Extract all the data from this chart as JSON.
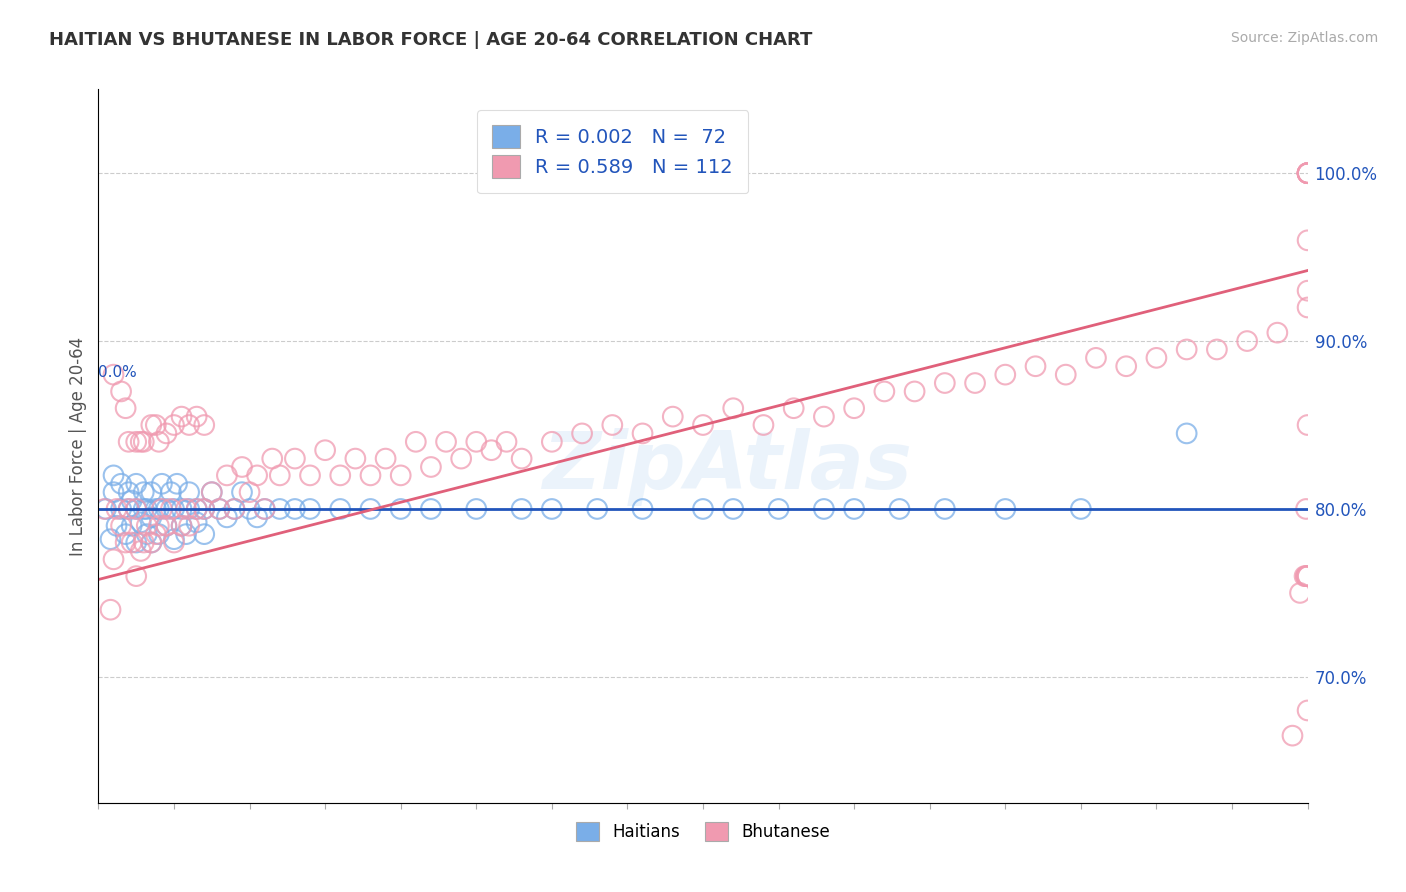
{
  "title": "HAITIAN VS BHUTANESE IN LABOR FORCE | AGE 20-64 CORRELATION CHART",
  "source": "Source: ZipAtlas.com",
  "ylabel": "In Labor Force | Age 20-64",
  "right_yticks": [
    0.7,
    0.8,
    0.9,
    1.0
  ],
  "right_ytick_labels": [
    "70.0%",
    "80.0%",
    "90.0%",
    "100.0%"
  ],
  "xmin": 0.0,
  "xmax": 0.8,
  "ymin": 0.625,
  "ymax": 1.05,
  "blue_R": 0.002,
  "blue_N": 72,
  "pink_R": 0.589,
  "pink_N": 112,
  "blue_color": "#7aaee8",
  "pink_color": "#f09ab0",
  "blue_line_color": "#2255bb",
  "pink_line_color": "#e0607a",
  "watermark": "ZipAtlas",
  "blue_trend_y_intercept": 0.8,
  "blue_trend_slope": 0.0,
  "pink_trend_y_intercept": 0.758,
  "pink_trend_slope": 0.23,
  "blue_x": [
    0.005,
    0.008,
    0.01,
    0.01,
    0.012,
    0.015,
    0.015,
    0.018,
    0.02,
    0.02,
    0.022,
    0.022,
    0.025,
    0.025,
    0.025,
    0.028,
    0.03,
    0.03,
    0.032,
    0.032,
    0.035,
    0.035,
    0.035,
    0.038,
    0.04,
    0.04,
    0.042,
    0.045,
    0.045,
    0.048,
    0.05,
    0.05,
    0.052,
    0.055,
    0.055,
    0.058,
    0.06,
    0.06,
    0.065,
    0.065,
    0.07,
    0.07,
    0.075,
    0.08,
    0.085,
    0.09,
    0.095,
    0.1,
    0.105,
    0.11,
    0.12,
    0.13,
    0.14,
    0.16,
    0.18,
    0.2,
    0.22,
    0.25,
    0.28,
    0.3,
    0.33,
    0.36,
    0.4,
    0.42,
    0.45,
    0.48,
    0.5,
    0.53,
    0.56,
    0.6,
    0.65,
    0.72
  ],
  "blue_y": [
    0.8,
    0.782,
    0.81,
    0.82,
    0.79,
    0.8,
    0.815,
    0.785,
    0.8,
    0.81,
    0.79,
    0.805,
    0.78,
    0.8,
    0.815,
    0.792,
    0.8,
    0.81,
    0.785,
    0.8,
    0.78,
    0.795,
    0.81,
    0.8,
    0.785,
    0.8,
    0.815,
    0.79,
    0.8,
    0.81,
    0.782,
    0.8,
    0.815,
    0.79,
    0.8,
    0.785,
    0.8,
    0.81,
    0.792,
    0.8,
    0.785,
    0.8,
    0.81,
    0.8,
    0.795,
    0.8,
    0.81,
    0.8,
    0.795,
    0.8,
    0.8,
    0.8,
    0.8,
    0.8,
    0.8,
    0.8,
    0.8,
    0.8,
    0.8,
    0.8,
    0.8,
    0.8,
    0.8,
    0.8,
    0.8,
    0.8,
    0.8,
    0.8,
    0.8,
    0.8,
    0.8,
    0.845
  ],
  "pink_x": [
    0.004,
    0.008,
    0.01,
    0.01,
    0.012,
    0.015,
    0.015,
    0.018,
    0.018,
    0.02,
    0.02,
    0.022,
    0.025,
    0.025,
    0.025,
    0.028,
    0.028,
    0.03,
    0.03,
    0.032,
    0.035,
    0.035,
    0.038,
    0.038,
    0.04,
    0.04,
    0.042,
    0.045,
    0.045,
    0.048,
    0.05,
    0.05,
    0.055,
    0.055,
    0.058,
    0.06,
    0.06,
    0.065,
    0.065,
    0.07,
    0.07,
    0.075,
    0.08,
    0.085,
    0.09,
    0.095,
    0.1,
    0.105,
    0.11,
    0.115,
    0.12,
    0.13,
    0.14,
    0.15,
    0.16,
    0.17,
    0.18,
    0.19,
    0.2,
    0.21,
    0.22,
    0.23,
    0.24,
    0.25,
    0.26,
    0.27,
    0.28,
    0.3,
    0.32,
    0.34,
    0.36,
    0.38,
    0.4,
    0.42,
    0.44,
    0.46,
    0.48,
    0.5,
    0.52,
    0.54,
    0.56,
    0.58,
    0.6,
    0.62,
    0.64,
    0.66,
    0.68,
    0.7,
    0.72,
    0.74,
    0.76,
    0.78,
    0.79,
    0.795,
    0.798,
    0.799,
    0.799,
    0.799,
    0.8,
    0.8,
    0.8,
    0.8,
    0.8,
    0.8,
    0.8,
    0.8,
    0.8,
    0.8,
    0.8,
    0.8,
    0.8,
    0.8
  ],
  "pink_y": [
    0.8,
    0.74,
    0.77,
    0.88,
    0.8,
    0.79,
    0.87,
    0.78,
    0.86,
    0.8,
    0.84,
    0.78,
    0.76,
    0.8,
    0.84,
    0.775,
    0.84,
    0.78,
    0.84,
    0.79,
    0.78,
    0.85,
    0.785,
    0.85,
    0.79,
    0.84,
    0.8,
    0.79,
    0.845,
    0.8,
    0.78,
    0.85,
    0.79,
    0.855,
    0.8,
    0.79,
    0.85,
    0.8,
    0.855,
    0.8,
    0.85,
    0.81,
    0.8,
    0.82,
    0.8,
    0.825,
    0.81,
    0.82,
    0.8,
    0.83,
    0.82,
    0.83,
    0.82,
    0.835,
    0.82,
    0.83,
    0.82,
    0.83,
    0.82,
    0.84,
    0.825,
    0.84,
    0.83,
    0.84,
    0.835,
    0.84,
    0.83,
    0.84,
    0.845,
    0.85,
    0.845,
    0.855,
    0.85,
    0.86,
    0.85,
    0.86,
    0.855,
    0.86,
    0.87,
    0.87,
    0.875,
    0.875,
    0.88,
    0.885,
    0.88,
    0.89,
    0.885,
    0.89,
    0.895,
    0.895,
    0.9,
    0.905,
    0.665,
    0.75,
    0.76,
    0.76,
    0.8,
    0.76,
    1.0,
    1.0,
    1.0,
    0.96,
    1.0,
    1.0,
    1.0,
    1.0,
    0.93,
    0.92,
    0.76,
    0.85,
    0.68,
    0.76
  ]
}
